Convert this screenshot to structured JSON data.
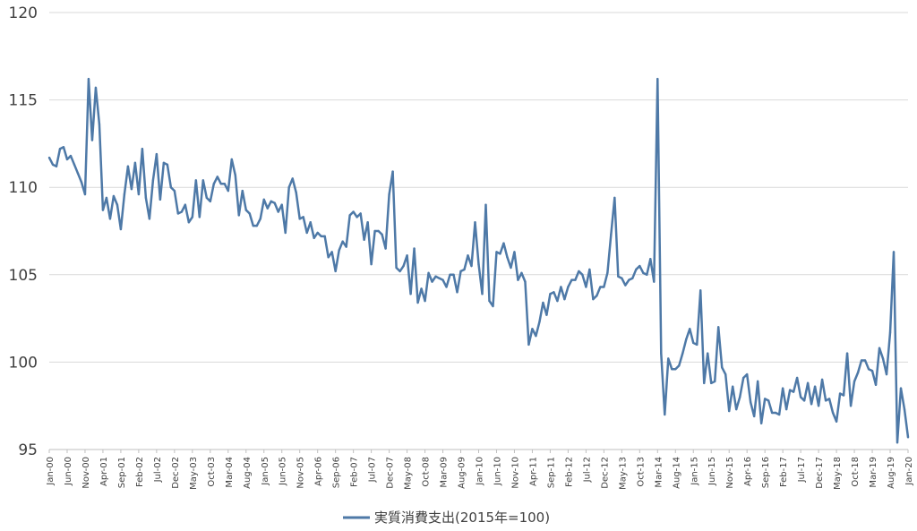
{
  "chart_data": {
    "type": "line",
    "title": "",
    "xlabel": "",
    "ylabel": "",
    "ylim": [
      95,
      120
    ],
    "yticks": [
      "95",
      "100",
      "105",
      "110",
      "115",
      "120"
    ],
    "grid": "horizontal",
    "legend_position": "bottom",
    "x_tick_labels": [
      "Jan-00",
      "Jun-00",
      "Nov-00",
      "Apr-01",
      "Sep-01",
      "Feb-02",
      "Jul-02",
      "Dec-02",
      "May-03",
      "Oct-03",
      "Mar-04",
      "Aug-04",
      "Jan-05",
      "Jun-05",
      "Nov-05",
      "Apr-06",
      "Sep-06",
      "Feb-07",
      "Jul-07",
      "Dec-07",
      "May-08",
      "Oct-08",
      "Mar-09",
      "Aug-09",
      "Jan-10",
      "Jun-10",
      "Nov-10",
      "Apr-11",
      "Sep-11",
      "Feb-12",
      "Jul-12",
      "Dec-12",
      "May-13",
      "Oct-13",
      "Mar-14",
      "Aug-14",
      "Jan-15",
      "Jun-15",
      "Nov-15",
      "Apr-16",
      "Sep-16",
      "Feb-17",
      "Jul-17",
      "Dec-17",
      "May-18",
      "Oct-18",
      "Mar-19",
      "Aug-19",
      "Jan-20"
    ],
    "x_start": "Jan-00",
    "x_frequency": "monthly",
    "series": [
      {
        "name": "実質消費支出(2015年=100)",
        "color": "#4E79A7",
        "values": [
          111.7,
          111.3,
          111.2,
          112.2,
          112.3,
          111.6,
          111.8,
          111.3,
          110.8,
          110.3,
          109.6,
          116.2,
          112.7,
          115.7,
          113.6,
          108.7,
          109.4,
          108.2,
          109.5,
          109.0,
          107.6,
          109.6,
          111.2,
          109.9,
          111.4,
          109.6,
          112.2,
          109.4,
          108.2,
          110.4,
          111.9,
          109.3,
          111.4,
          111.3,
          110.0,
          109.8,
          108.5,
          108.6,
          109.0,
          108.0,
          108.3,
          110.4,
          108.3,
          110.4,
          109.4,
          109.2,
          110.2,
          110.6,
          110.2,
          110.2,
          109.8,
          111.6,
          110.7,
          108.4,
          109.8,
          108.7,
          108.5,
          107.8,
          107.8,
          108.2,
          109.3,
          108.8,
          109.2,
          109.1,
          108.6,
          109.0,
          107.4,
          110.0,
          110.5,
          109.7,
          108.2,
          108.3,
          107.4,
          108.0,
          107.1,
          107.4,
          107.2,
          107.2,
          106.0,
          106.3,
          105.2,
          106.4,
          106.9,
          106.6,
          108.4,
          108.6,
          108.3,
          108.5,
          107.0,
          108.0,
          105.6,
          107.5,
          107.5,
          107.3,
          106.5,
          109.6,
          110.9,
          105.4,
          105.2,
          105.5,
          106.1,
          103.9,
          106.5,
          103.4,
          104.2,
          103.5,
          105.1,
          104.6,
          104.9,
          104.8,
          104.7,
          104.3,
          105.0,
          105.0,
          104.0,
          105.2,
          105.3,
          106.1,
          105.5,
          108.0,
          105.6,
          103.9,
          109.0,
          103.5,
          103.2,
          106.3,
          106.2,
          106.8,
          106.0,
          105.4,
          106.3,
          104.7,
          105.1,
          104.6,
          101.0,
          101.9,
          101.5,
          102.3,
          103.4,
          102.7,
          103.9,
          104.0,
          103.5,
          104.3,
          103.6,
          104.3,
          104.7,
          104.7,
          105.2,
          105.0,
          104.3,
          105.3,
          103.6,
          103.8,
          104.3,
          104.3,
          105.1,
          107.3,
          109.4,
          104.9,
          104.8,
          104.4,
          104.7,
          104.8,
          105.3,
          105.5,
          105.1,
          105.0,
          105.9,
          104.6,
          116.2,
          100.5,
          97.0,
          100.2,
          99.6,
          99.6,
          99.8,
          100.5,
          101.3,
          101.9,
          101.1,
          101.0,
          104.1,
          98.8,
          100.5,
          98.8,
          98.9,
          102.0,
          99.7,
          99.3,
          97.2,
          98.6,
          97.3,
          98.0,
          99.1,
          99.3,
          97.7,
          96.9,
          98.9,
          96.5,
          97.9,
          97.8,
          97.1,
          97.1,
          97.0,
          98.5,
          97.3,
          98.4,
          98.3,
          99.1,
          98.0,
          97.8,
          98.8,
          97.6,
          98.6,
          97.5,
          99.0,
          97.8,
          97.9,
          97.1,
          96.6,
          98.2,
          98.1,
          100.5,
          97.5,
          98.9,
          99.4,
          100.1,
          100.1,
          99.6,
          99.5,
          98.7,
          100.8,
          100.2,
          99.3,
          101.7,
          106.3,
          95.4,
          98.5,
          97.3,
          95.7
        ]
      }
    ]
  }
}
